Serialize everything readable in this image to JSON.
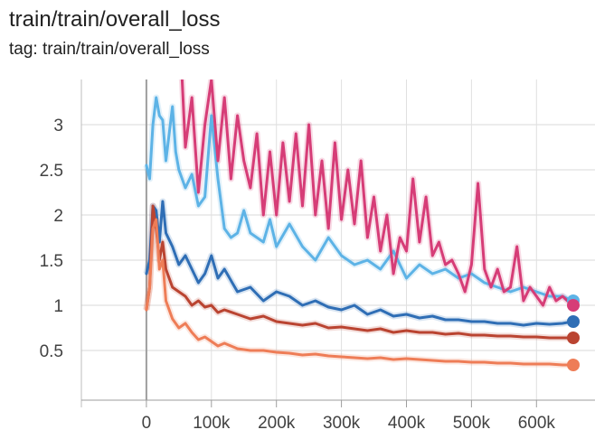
{
  "header": {
    "title": "train/train/overall_loss",
    "subtitle": "tag: train/train/overall_loss"
  },
  "chart_data": {
    "type": "line",
    "title": "train/train/overall_loss",
    "xlabel": "",
    "ylabel": "",
    "xlim": [
      -100000,
      690000
    ],
    "ylim": [
      -0.05,
      3.5
    ],
    "grid": true,
    "xticks": [
      0,
      100000,
      200000,
      300000,
      400000,
      500000,
      600000
    ],
    "xtick_labels": [
      "0",
      "100k",
      "200k",
      "300k",
      "400k",
      "500k",
      "600k"
    ],
    "yticks": [
      0.5,
      1,
      1.5,
      2,
      2.5,
      3
    ],
    "ytick_labels": [
      "0.5",
      "1",
      "1.5",
      "2",
      "2.5",
      "3"
    ],
    "series": [
      {
        "color": "#5DB3E6",
        "x": [
          0,
          5000,
          10000,
          15000,
          20000,
          25000,
          30000,
          35000,
          40000,
          45000,
          50000,
          60000,
          70000,
          80000,
          90000,
          100000,
          110000,
          120000,
          130000,
          140000,
          150000,
          160000,
          170000,
          180000,
          190000,
          200000,
          220000,
          240000,
          260000,
          280000,
          300000,
          320000,
          340000,
          360000,
          380000,
          400000,
          420000,
          440000,
          460000,
          480000,
          500000,
          520000,
          540000,
          560000,
          580000,
          600000,
          620000,
          640000,
          655000
        ],
        "y": [
          2.55,
          2.4,
          3.0,
          3.3,
          3.1,
          3.05,
          2.6,
          2.9,
          3.2,
          2.7,
          2.5,
          2.3,
          2.45,
          2.1,
          2.2,
          3.1,
          2.4,
          1.85,
          1.75,
          1.8,
          2.05,
          1.8,
          1.75,
          1.7,
          1.95,
          1.65,
          1.9,
          1.65,
          1.5,
          1.75,
          1.55,
          1.45,
          1.5,
          1.4,
          1.6,
          1.3,
          1.45,
          1.35,
          1.4,
          1.3,
          1.35,
          1.25,
          1.2,
          1.15,
          1.2,
          1.15,
          1.1,
          1.1,
          1.05
        ]
      },
      {
        "color": "#D63D77",
        "x": [
          55000,
          60000,
          70000,
          80000,
          90000,
          100000,
          110000,
          120000,
          130000,
          140000,
          150000,
          160000,
          170000,
          180000,
          190000,
          200000,
          210000,
          220000,
          230000,
          240000,
          250000,
          260000,
          270000,
          280000,
          290000,
          300000,
          310000,
          320000,
          330000,
          340000,
          350000,
          360000,
          370000,
          380000,
          390000,
          400000,
          410000,
          420000,
          430000,
          440000,
          450000,
          460000,
          470000,
          480000,
          490000,
          500000,
          510000,
          520000,
          530000,
          540000,
          550000,
          560000,
          570000,
          580000,
          590000,
          600000,
          610000,
          620000,
          630000,
          640000,
          655000
        ],
        "y": [
          3.5,
          2.75,
          3.3,
          2.25,
          3.0,
          3.5,
          2.6,
          3.3,
          2.4,
          3.1,
          2.6,
          2.3,
          2.9,
          2.0,
          2.7,
          2.0,
          2.8,
          2.15,
          2.9,
          2.1,
          3.0,
          2.0,
          2.6,
          1.85,
          2.8,
          1.95,
          2.5,
          1.9,
          2.6,
          1.75,
          2.2,
          1.6,
          2.0,
          1.35,
          1.75,
          1.6,
          2.4,
          1.7,
          2.2,
          1.55,
          1.7,
          1.45,
          1.5,
          1.35,
          1.15,
          1.45,
          2.35,
          1.4,
          1.2,
          1.4,
          1.15,
          1.2,
          1.65,
          1.05,
          1.2,
          1.1,
          1.0,
          1.2,
          1.05,
          1.1,
          1.0
        ]
      },
      {
        "color": "#2F6EB5",
        "x": [
          0,
          5000,
          10000,
          15000,
          20000,
          25000,
          30000,
          40000,
          50000,
          60000,
          70000,
          80000,
          90000,
          100000,
          110000,
          120000,
          140000,
          160000,
          180000,
          200000,
          220000,
          240000,
          260000,
          280000,
          300000,
          320000,
          340000,
          360000,
          380000,
          400000,
          420000,
          440000,
          460000,
          480000,
          500000,
          520000,
          540000,
          560000,
          580000,
          600000,
          620000,
          640000,
          655000
        ],
        "y": [
          1.35,
          1.5,
          2.1,
          2.05,
          1.7,
          2.15,
          1.8,
          1.65,
          1.45,
          1.55,
          1.4,
          1.25,
          1.35,
          1.55,
          1.3,
          1.4,
          1.15,
          1.2,
          1.05,
          1.15,
          1.1,
          1.0,
          1.05,
          0.98,
          0.95,
          1.0,
          0.9,
          0.95,
          0.88,
          0.9,
          0.86,
          0.88,
          0.84,
          0.84,
          0.82,
          0.82,
          0.8,
          0.8,
          0.78,
          0.8,
          0.79,
          0.8,
          0.82
        ]
      },
      {
        "color": "#BA4431",
        "x": [
          0,
          5000,
          10000,
          15000,
          20000,
          25000,
          30000,
          40000,
          50000,
          60000,
          70000,
          80000,
          90000,
          100000,
          110000,
          120000,
          140000,
          160000,
          180000,
          200000,
          220000,
          240000,
          260000,
          280000,
          300000,
          320000,
          340000,
          360000,
          380000,
          400000,
          420000,
          440000,
          460000,
          480000,
          500000,
          520000,
          540000,
          560000,
          580000,
          600000,
          620000,
          640000,
          655000
        ],
        "y": [
          0.95,
          1.2,
          2.1,
          1.85,
          1.5,
          1.7,
          1.4,
          1.2,
          1.15,
          1.1,
          1.0,
          1.05,
          0.98,
          1.0,
          0.92,
          0.95,
          0.9,
          0.85,
          0.88,
          0.82,
          0.8,
          0.78,
          0.8,
          0.75,
          0.76,
          0.74,
          0.72,
          0.74,
          0.7,
          0.72,
          0.7,
          0.7,
          0.68,
          0.69,
          0.67,
          0.67,
          0.66,
          0.66,
          0.65,
          0.65,
          0.64,
          0.64,
          0.64
        ]
      },
      {
        "color": "#EE7D57",
        "x": [
          0,
          5000,
          10000,
          15000,
          20000,
          25000,
          30000,
          40000,
          50000,
          60000,
          70000,
          80000,
          90000,
          100000,
          110000,
          120000,
          140000,
          160000,
          180000,
          200000,
          220000,
          240000,
          260000,
          280000,
          300000,
          320000,
          340000,
          360000,
          380000,
          400000,
          420000,
          440000,
          460000,
          480000,
          500000,
          520000,
          540000,
          560000,
          580000,
          600000,
          620000,
          640000,
          655000
        ],
        "y": [
          0.95,
          1.2,
          1.85,
          1.95,
          1.4,
          1.5,
          1.05,
          0.85,
          0.75,
          0.8,
          0.7,
          0.62,
          0.65,
          0.6,
          0.55,
          0.58,
          0.52,
          0.5,
          0.5,
          0.48,
          0.47,
          0.45,
          0.46,
          0.44,
          0.43,
          0.42,
          0.41,
          0.42,
          0.4,
          0.41,
          0.4,
          0.39,
          0.38,
          0.38,
          0.37,
          0.37,
          0.36,
          0.36,
          0.35,
          0.35,
          0.35,
          0.34,
          0.34
        ]
      }
    ]
  }
}
